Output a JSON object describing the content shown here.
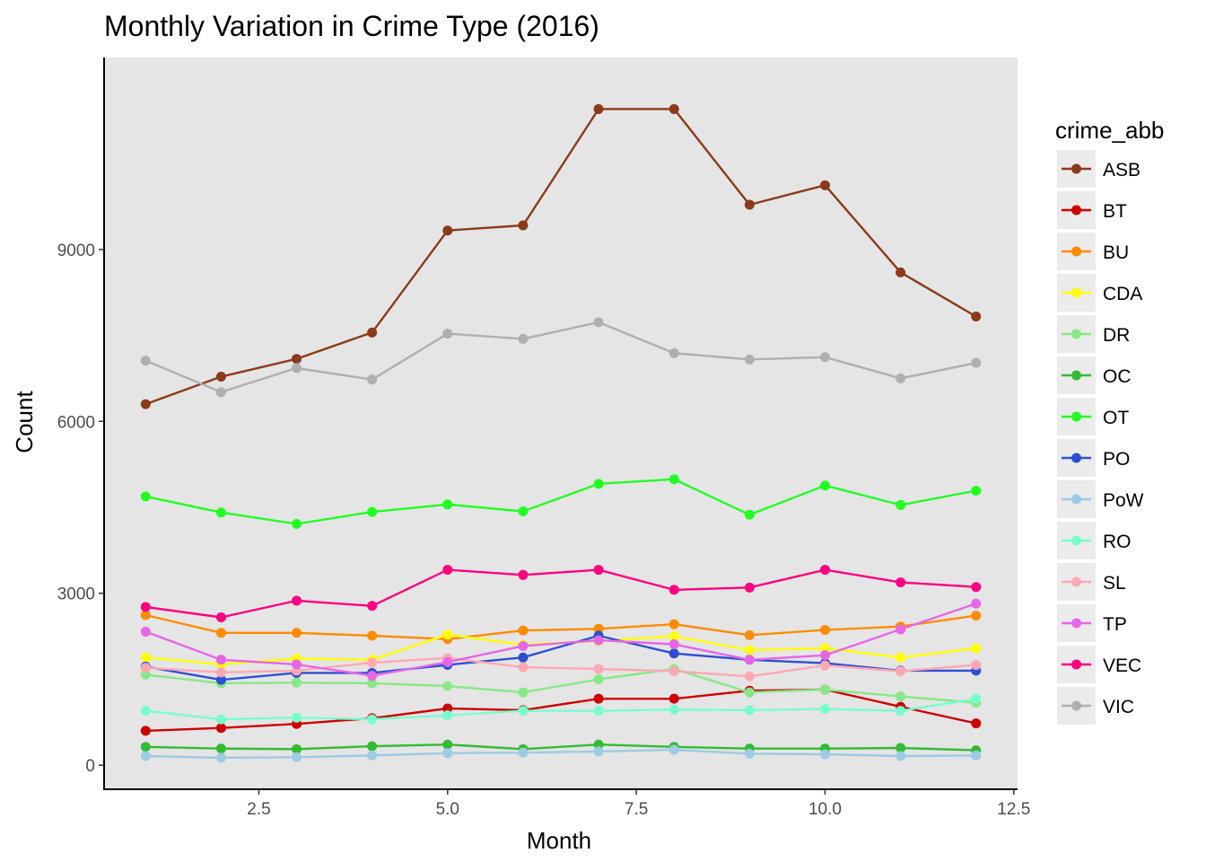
{
  "chart_data": {
    "type": "line",
    "title": "Monthly Variation in Crime Type (2016)",
    "xlabel": "Month",
    "ylabel": "Count",
    "xlim": [
      0.45,
      12.55
    ],
    "ylim": [
      -420,
      12350
    ],
    "xticks": [
      2.5,
      5.0,
      7.5,
      10.0,
      12.5
    ],
    "xtick_labels": [
      "2.5",
      "5.0",
      "7.5",
      "10.0",
      "12.5"
    ],
    "yticks": [
      0,
      3000,
      6000,
      9000
    ],
    "ytick_labels": [
      "0",
      "3000",
      "6000",
      "9000"
    ],
    "x": [
      1,
      2,
      3,
      4,
      5,
      6,
      7,
      8,
      9,
      10,
      11,
      12
    ],
    "grid": false,
    "legend_title": "crime_abb",
    "legend_position": "right",
    "series": [
      {
        "name": "ASB",
        "color": "#8B3A1A",
        "values": [
          6300,
          6780,
          7090,
          7550,
          9330,
          9420,
          11450,
          11450,
          9780,
          10120,
          8600,
          7830
        ]
      },
      {
        "name": "BT",
        "color": "#CC0000",
        "values": [
          600,
          650,
          720,
          820,
          990,
          960,
          1160,
          1160,
          1300,
          1320,
          1020,
          730
        ]
      },
      {
        "name": "BU",
        "color": "#FF8C00",
        "values": [
          2620,
          2310,
          2310,
          2260,
          2200,
          2350,
          2380,
          2460,
          2270,
          2360,
          2420,
          2610
        ]
      },
      {
        "name": "CDA",
        "color": "#FFFF00",
        "values": [
          1880,
          1760,
          1860,
          1840,
          2280,
          2100,
          2170,
          2250,
          2010,
          2040,
          1880,
          2040
        ]
      },
      {
        "name": "DR",
        "color": "#88E888",
        "values": [
          1580,
          1430,
          1440,
          1430,
          1380,
          1270,
          1500,
          1680,
          1270,
          1320,
          1200,
          1090
        ]
      },
      {
        "name": "OC",
        "color": "#33BB33",
        "values": [
          320,
          290,
          280,
          330,
          360,
          280,
          360,
          320,
          290,
          290,
          300,
          260
        ]
      },
      {
        "name": "OT",
        "color": "#22FF22",
        "values": [
          4690,
          4410,
          4210,
          4420,
          4550,
          4430,
          4910,
          4990,
          4370,
          4880,
          4540,
          4790
        ]
      },
      {
        "name": "PO",
        "color": "#2E50D0",
        "values": [
          1720,
          1490,
          1610,
          1610,
          1750,
          1880,
          2260,
          1950,
          1840,
          1780,
          1650,
          1650
        ]
      },
      {
        "name": "PoW",
        "color": "#9CCBE4",
        "values": [
          160,
          130,
          140,
          170,
          210,
          220,
          240,
          270,
          200,
          190,
          160,
          170
        ]
      },
      {
        "name": "RO",
        "color": "#77FFCC",
        "values": [
          950,
          800,
          830,
          800,
          870,
          950,
          950,
          970,
          960,
          980,
          950,
          1160
        ]
      },
      {
        "name": "SL",
        "color": "#FFA8B4",
        "values": [
          1700,
          1620,
          1650,
          1790,
          1870,
          1710,
          1680,
          1640,
          1550,
          1740,
          1640,
          1750
        ]
      },
      {
        "name": "TP",
        "color": "#E766E7",
        "values": [
          2330,
          1840,
          1760,
          1560,
          1800,
          2080,
          2180,
          2110,
          1840,
          1920,
          2370,
          2820
        ]
      },
      {
        "name": "VEC",
        "color": "#FF0080",
        "values": [
          2760,
          2580,
          2870,
          2780,
          3410,
          3320,
          3410,
          3060,
          3100,
          3410,
          3190,
          3110
        ]
      },
      {
        "name": "VIC",
        "color": "#AFAFAF",
        "values": [
          7060,
          6510,
          6930,
          6730,
          7530,
          7440,
          7730,
          7190,
          7080,
          7120,
          6750,
          7020
        ]
      }
    ]
  }
}
